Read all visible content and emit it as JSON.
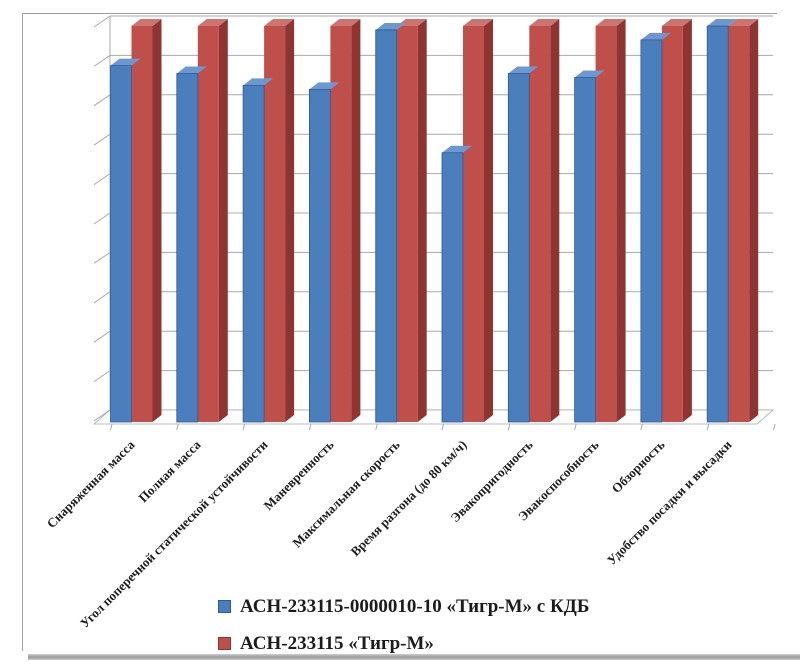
{
  "chart_data": {
    "type": "bar",
    "projection": "3d-clustered-column",
    "title": "",
    "xlabel": "",
    "ylabel": "",
    "categories": [
      "Снаряженная масса",
      "Полная масса",
      "Угол поперечной статической устойчивости",
      "Маневренность",
      "Максимальная скорость",
      "Время разгона (до 80 км/ч)",
      "Эвакопригодность",
      "Эвакоспособность",
      "Обзорность",
      "Удобство посадки и высадки"
    ],
    "series": [
      {
        "name": "АСН-233115-0000010-10 «Тигр-М» с КДБ",
        "color": "#4a7ebc",
        "color_top": "#6d98cf",
        "color_side": "#2d5a96",
        "values": [
          9.0,
          8.8,
          8.5,
          8.4,
          9.9,
          6.8,
          8.8,
          8.7,
          9.65,
          10.0
        ]
      },
      {
        "name": "АСН-233115 «Тигр-М»",
        "color": "#bf4f4b",
        "color_top": "#cc7470",
        "color_side": "#8e3532",
        "values": [
          10,
          10,
          10,
          10,
          10,
          10,
          10,
          10,
          10,
          10
        ]
      }
    ],
    "ylim": [
      0,
      10
    ],
    "gridline_count": 10,
    "grid": "on",
    "y_tick_labels_visible": false,
    "legend_position": "bottom"
  }
}
